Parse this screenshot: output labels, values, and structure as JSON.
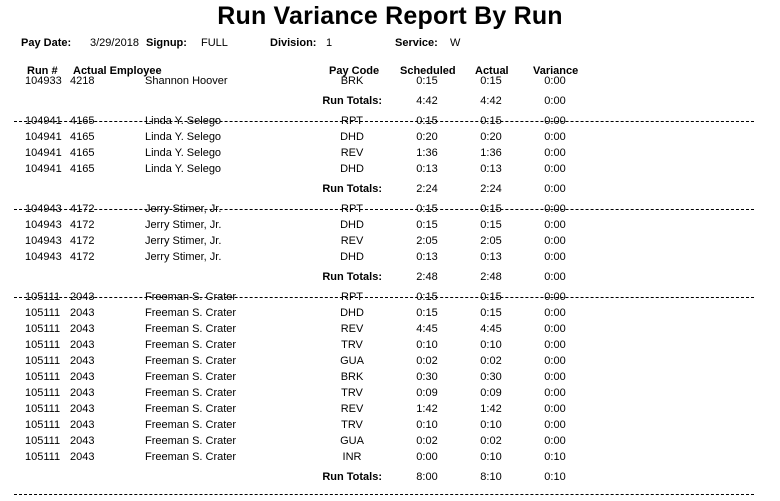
{
  "title": "Run Variance Report By Run",
  "header": {
    "pay_date_label": "Pay Date:",
    "pay_date": "3/29/2018",
    "signup_label": "Signup:",
    "signup": "FULL",
    "division_label": "Division:",
    "division": "1",
    "service_label": "Service:",
    "service": "W"
  },
  "columns": {
    "run": "Run #",
    "employee": "Actual Employee",
    "pay_code": "Pay Code",
    "scheduled": "Scheduled",
    "actual": "Actual",
    "variance": "Variance"
  },
  "totals_label": "Run Totals:",
  "groups": [
    {
      "rows": [
        {
          "run": "104933",
          "emp": "4218",
          "name": "Shannon Hoover",
          "code": "BRK",
          "sch": "0:15",
          "act": "0:15",
          "var": "0:00"
        }
      ],
      "totals": {
        "sch": "4:42",
        "act": "4:42",
        "var": "0:00"
      }
    },
    {
      "rows": [
        {
          "run": "104941",
          "emp": "4165",
          "name": "Linda Y. Selego",
          "code": "RPT",
          "sch": "0:15",
          "act": "0:15",
          "var": "0:00"
        },
        {
          "run": "104941",
          "emp": "4165",
          "name": "Linda Y. Selego",
          "code": "DHD",
          "sch": "0:20",
          "act": "0:20",
          "var": "0:00"
        },
        {
          "run": "104941",
          "emp": "4165",
          "name": "Linda Y. Selego",
          "code": "REV",
          "sch": "1:36",
          "act": "1:36",
          "var": "0:00"
        },
        {
          "run": "104941",
          "emp": "4165",
          "name": "Linda Y. Selego",
          "code": "DHD",
          "sch": "0:13",
          "act": "0:13",
          "var": "0:00"
        }
      ],
      "totals": {
        "sch": "2:24",
        "act": "2:24",
        "var": "0:00"
      }
    },
    {
      "rows": [
        {
          "run": "104943",
          "emp": "4172",
          "name": "Jerry Stimer, Jr.",
          "code": "RPT",
          "sch": "0:15",
          "act": "0:15",
          "var": "0:00"
        },
        {
          "run": "104943",
          "emp": "4172",
          "name": "Jerry Stimer, Jr.",
          "code": "DHD",
          "sch": "0:15",
          "act": "0:15",
          "var": "0:00"
        },
        {
          "run": "104943",
          "emp": "4172",
          "name": "Jerry Stimer, Jr.",
          "code": "REV",
          "sch": "2:05",
          "act": "2:05",
          "var": "0:00"
        },
        {
          "run": "104943",
          "emp": "4172",
          "name": "Jerry Stimer, Jr.",
          "code": "DHD",
          "sch": "0:13",
          "act": "0:13",
          "var": "0:00"
        }
      ],
      "totals": {
        "sch": "2:48",
        "act": "2:48",
        "var": "0:00"
      }
    },
    {
      "rows": [
        {
          "run": "105111",
          "emp": "2043",
          "name": "Freeman S. Crater",
          "code": "RPT",
          "sch": "0:15",
          "act": "0:15",
          "var": "0:00"
        },
        {
          "run": "105111",
          "emp": "2043",
          "name": "Freeman S. Crater",
          "code": "DHD",
          "sch": "0:15",
          "act": "0:15",
          "var": "0:00"
        },
        {
          "run": "105111",
          "emp": "2043",
          "name": "Freeman S. Crater",
          "code": "REV",
          "sch": "4:45",
          "act": "4:45",
          "var": "0:00"
        },
        {
          "run": "105111",
          "emp": "2043",
          "name": "Freeman S. Crater",
          "code": "TRV",
          "sch": "0:10",
          "act": "0:10",
          "var": "0:00"
        },
        {
          "run": "105111",
          "emp": "2043",
          "name": "Freeman S. Crater",
          "code": "GUA",
          "sch": "0:02",
          "act": "0:02",
          "var": "0:00"
        },
        {
          "run": "105111",
          "emp": "2043",
          "name": "Freeman S. Crater",
          "code": "BRK",
          "sch": "0:30",
          "act": "0:30",
          "var": "0:00"
        },
        {
          "run": "105111",
          "emp": "2043",
          "name": "Freeman S. Crater",
          "code": "TRV",
          "sch": "0:09",
          "act": "0:09",
          "var": "0:00"
        },
        {
          "run": "105111",
          "emp": "2043",
          "name": "Freeman S. Crater",
          "code": "REV",
          "sch": "1:42",
          "act": "1:42",
          "var": "0:00"
        },
        {
          "run": "105111",
          "emp": "2043",
          "name": "Freeman S. Crater",
          "code": "TRV",
          "sch": "0:10",
          "act": "0:10",
          "var": "0:00"
        },
        {
          "run": "105111",
          "emp": "2043",
          "name": "Freeman S. Crater",
          "code": "GUA",
          "sch": "0:02",
          "act": "0:02",
          "var": "0:00"
        },
        {
          "run": "105111",
          "emp": "2043",
          "name": "Freeman S. Crater",
          "code": "INR",
          "sch": "0:00",
          "act": "0:10",
          "var": "0:10"
        }
      ],
      "totals": {
        "sch": "8:00",
        "act": "8:10",
        "var": "0:10"
      }
    }
  ]
}
